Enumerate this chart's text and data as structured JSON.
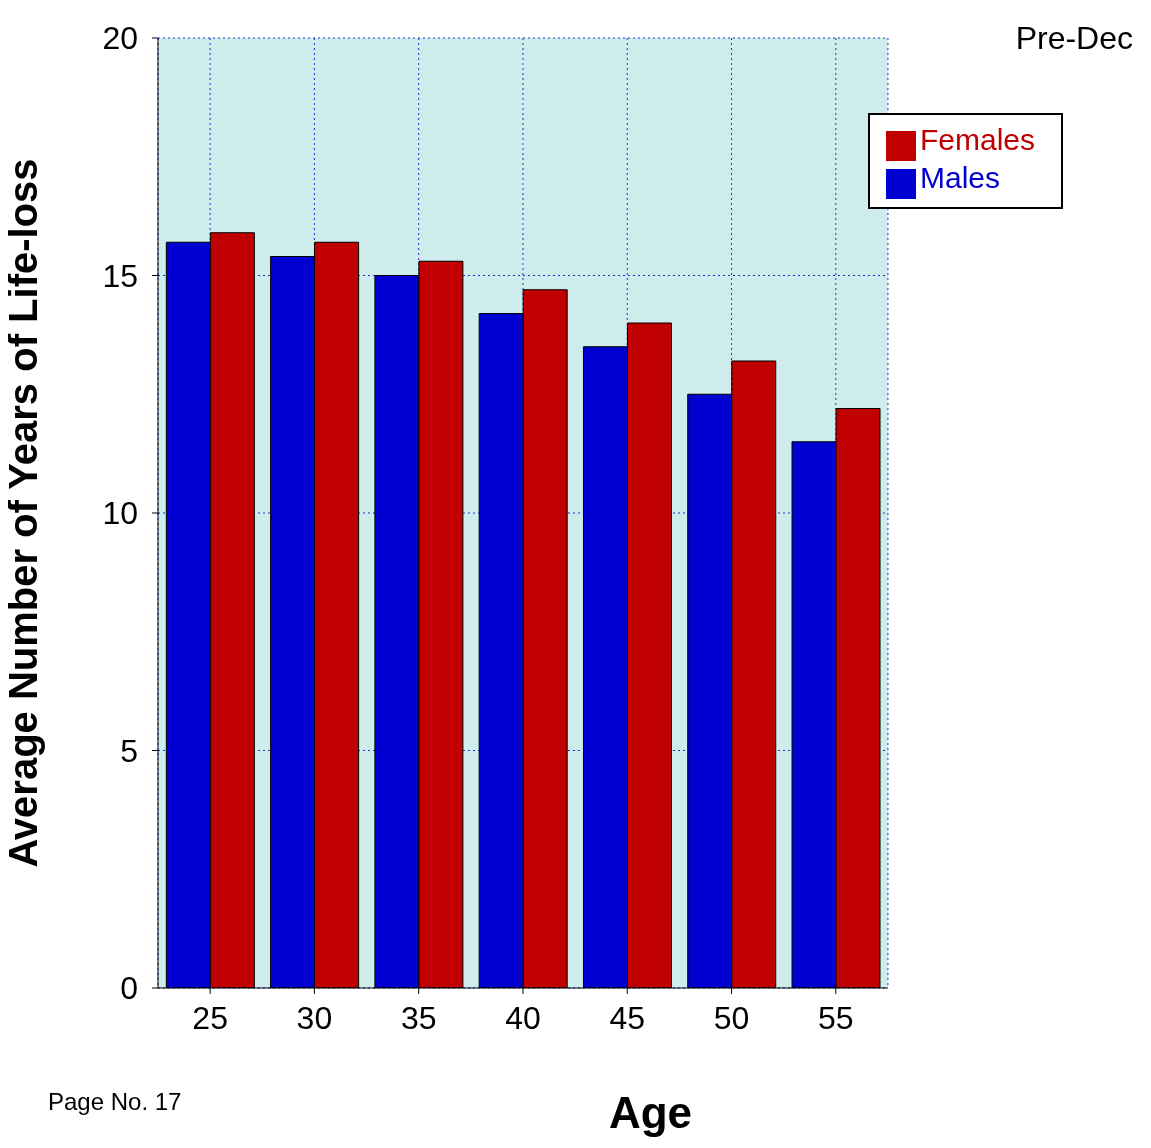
{
  "chart_data": {
    "type": "bar",
    "title": "Pre-Dec",
    "xlabel": "Age",
    "ylabel": "Average Number of Years of Life-loss",
    "annotations": [
      "Page No. 17"
    ],
    "categories": [
      "25",
      "30",
      "35",
      "40",
      "45",
      "50",
      "55"
    ],
    "series": [
      {
        "name": "Males",
        "color": "#0000d0",
        "values": [
          15.7,
          15.4,
          15.0,
          14.2,
          13.5,
          12.5,
          11.5
        ]
      },
      {
        "name": "Females",
        "color": "#c00000",
        "values": [
          15.9,
          15.7,
          15.3,
          14.7,
          14.0,
          13.2,
          12.2
        ]
      }
    ],
    "ylim": [
      0,
      20
    ],
    "yticks": [
      0,
      5,
      10,
      15,
      20
    ],
    "grid": true,
    "legend": "top right"
  }
}
